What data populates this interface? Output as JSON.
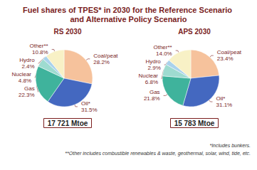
{
  "title": "Fuel shares of TPES* in 2030 for the Reference Scenario and Alternative Policy Scenario",
  "notes": [
    "*Includes bunkers.",
    "**Other includes combustible renewables & waste, geothermal, solar, wind, tide, etc."
  ],
  "chart_data": [
    {
      "type": "pie",
      "title": "RS 2030",
      "annotation": "17 721 Mtoe",
      "categories": [
        "Coal/peat",
        "Oil*",
        "Gas",
        "Nuclear",
        "Hydro",
        "Other**"
      ],
      "values": [
        28.2,
        31.5,
        22.3,
        4.8,
        2.4,
        10.8
      ],
      "value_labels": [
        "28.2%",
        "31.5%",
        "22.3%",
        "4.8%",
        "2.4%",
        "10.8%"
      ],
      "colors": [
        "#f6c29c",
        "#4468c0",
        "#3fb39c",
        "#9edbd0",
        "#a9d2ec",
        "#f8f1c6"
      ],
      "data_labels": true
    },
    {
      "type": "pie",
      "title": "APS 2030",
      "annotation": "15 783 Mtoe",
      "categories": [
        "Coal/peat",
        "Oil*",
        "Gas",
        "Nuclear",
        "Hydro",
        "Other**"
      ],
      "values": [
        23.4,
        31.1,
        21.8,
        6.8,
        2.9,
        14.0
      ],
      "value_labels": [
        "23.4%",
        "31.1%",
        "21.8%",
        "6.8%",
        "2.9%",
        "14.0%"
      ],
      "colors": [
        "#f6c29c",
        "#4468c0",
        "#3fb39c",
        "#9edbd0",
        "#a9d2ec",
        "#f8f1c6"
      ],
      "data_labels": true
    }
  ]
}
